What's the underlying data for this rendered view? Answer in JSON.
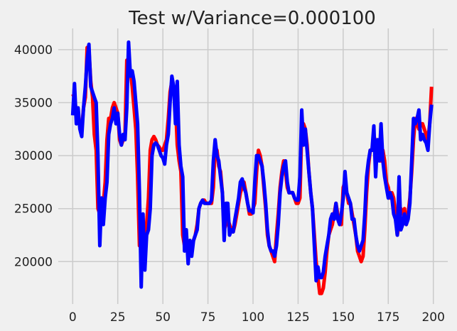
{
  "chart_data": {
    "type": "line",
    "title": "Test w/Variance=0.000100",
    "xlabel": "",
    "ylabel": "",
    "xlim": [
      -8,
      208
    ],
    "ylim": [
      16000,
      42000
    ],
    "x_ticks": [
      0,
      25,
      50,
      75,
      100,
      125,
      150,
      175,
      200
    ],
    "x_tick_labels": [
      "0",
      "25",
      "50",
      "75",
      "100",
      "125",
      "150",
      "175",
      "200"
    ],
    "y_ticks": [
      20000,
      25000,
      30000,
      35000,
      40000
    ],
    "y_tick_labels": [
      "20000",
      "25000",
      "30000",
      "35000",
      "40000"
    ],
    "grid": true,
    "background": "#f0f0f0",
    "grid_color": "#cbcbcb",
    "series": [
      {
        "color": "#ff0000",
        "x": [
          0,
          1,
          2,
          3,
          4,
          5,
          6,
          7,
          8,
          9,
          10,
          11,
          12,
          13,
          14,
          15,
          16,
          17,
          18,
          19,
          20,
          21,
          22,
          23,
          24,
          25,
          26,
          27,
          28,
          29,
          30,
          31,
          32,
          33,
          34,
          35,
          36,
          37,
          38,
          39,
          40,
          41,
          42,
          43,
          44,
          45,
          46,
          47,
          48,
          49,
          50,
          51,
          52,
          53,
          54,
          55,
          56,
          57,
          58,
          59,
          60,
          61,
          62,
          63,
          64,
          65,
          66,
          67,
          68,
          69,
          70,
          71,
          72,
          73,
          74,
          75,
          76,
          77,
          78,
          79,
          80,
          81,
          82,
          83,
          84,
          85,
          86,
          87,
          88,
          89,
          90,
          91,
          92,
          93,
          94,
          95,
          96,
          97,
          98,
          99,
          100,
          101,
          102,
          103,
          104,
          105,
          106,
          107,
          108,
          109,
          110,
          111,
          112,
          113,
          114,
          115,
          116,
          117,
          118,
          119,
          120,
          121,
          122,
          123,
          124,
          125,
          126,
          127,
          128,
          129,
          130,
          131,
          132,
          133,
          134,
          135,
          136,
          137,
          138,
          139,
          140,
          141,
          142,
          143,
          144,
          145,
          146,
          147,
          148,
          149,
          150,
          151,
          152,
          153,
          154,
          155,
          156,
          157,
          158,
          159,
          160,
          161,
          162,
          163,
          164,
          165,
          166,
          167,
          168,
          169,
          170,
          171,
          172,
          173,
          174,
          175,
          176,
          177,
          178,
          179,
          180,
          181,
          182,
          183,
          184,
          185,
          186,
          187,
          188,
          189,
          190,
          191,
          192,
          193,
          194,
          195,
          196,
          197,
          198,
          199
        ],
        "y": [
          35800,
          35500,
          34000,
          33500,
          33000,
          32500,
          34500,
          35500,
          40200,
          40000,
          37000,
          35500,
          32000,
          30500,
          25000,
          24500,
          24800,
          25500,
          27500,
          31500,
          33500,
          33500,
          34500,
          35000,
          34500,
          34000,
          31500,
          31000,
          31500,
          32000,
          39000,
          38500,
          38000,
          36500,
          34500,
          32500,
          28000,
          21500,
          22000,
          22500,
          23000,
          23500,
          26000,
          30500,
          31500,
          31800,
          31500,
          31000,
          30800,
          30500,
          30500,
          31000,
          31500,
          33500,
          36000,
          37000,
          36500,
          35000,
          31000,
          29500,
          28500,
          22500,
          21500,
          21200,
          21000,
          21000,
          21500,
          22000,
          22500,
          23500,
          25000,
          25500,
          25800,
          25800,
          25500,
          25500,
          25500,
          25500,
          27000,
          30800,
          30500,
          29000,
          28500,
          26500,
          23000,
          23500,
          24000,
          23500,
          23000,
          22800,
          23500,
          24500,
          25500,
          26500,
          27000,
          27500,
          26500,
          25500,
          24500,
          24500,
          25000,
          25500,
          28500,
          30500,
          30000,
          29000,
          27000,
          25000,
          22500,
          21500,
          21000,
          20500,
          20000,
          22500,
          24500,
          27000,
          28500,
          29500,
          28500,
          27000,
          26500,
          26500,
          26500,
          26000,
          25500,
          25500,
          26000,
          32500,
          33000,
          32500,
          31000,
          28500,
          26500,
          25000,
          22500,
          20000,
          18500,
          17000,
          17000,
          17500,
          19000,
          21000,
          22500,
          23000,
          23500,
          24500,
          25500,
          24500,
          24000,
          23500,
          27000,
          27500,
          26500,
          25500,
          25500,
          24500,
          23500,
          22500,
          21000,
          20500,
          20000,
          20500,
          23000,
          26500,
          29000,
          30500,
          30500,
          32000,
          31000,
          30500,
          30000,
          29500,
          30500,
          29500,
          27500,
          27000,
          26000,
          26500,
          26000,
          24500,
          22500,
          23500,
          25000,
          24500,
          25000,
          23500,
          24500,
          26000,
          28500,
          31500,
          33500,
          33000,
          32500,
          33000,
          33000,
          32500,
          32000,
          31500,
          33000,
          36500
        ]
      },
      {
        "color": "#0000ff",
        "x": [
          0,
          1,
          2,
          3,
          4,
          5,
          6,
          7,
          8,
          9,
          10,
          11,
          12,
          13,
          14,
          15,
          16,
          17,
          18,
          19,
          20,
          21,
          22,
          23,
          24,
          25,
          26,
          27,
          28,
          29,
          30,
          31,
          32,
          33,
          34,
          35,
          36,
          37,
          38,
          39,
          40,
          41,
          42,
          43,
          44,
          45,
          46,
          47,
          48,
          49,
          50,
          51,
          52,
          53,
          54,
          55,
          56,
          57,
          58,
          59,
          60,
          61,
          62,
          63,
          64,
          65,
          66,
          67,
          68,
          69,
          70,
          71,
          72,
          73,
          74,
          75,
          76,
          77,
          78,
          79,
          80,
          81,
          82,
          83,
          84,
          85,
          86,
          87,
          88,
          89,
          90,
          91,
          92,
          93,
          94,
          95,
          96,
          97,
          98,
          99,
          100,
          101,
          102,
          103,
          104,
          105,
          106,
          107,
          108,
          109,
          110,
          111,
          112,
          113,
          114,
          115,
          116,
          117,
          118,
          119,
          120,
          121,
          122,
          123,
          124,
          125,
          126,
          127,
          128,
          129,
          130,
          131,
          132,
          133,
          134,
          135,
          136,
          137,
          138,
          139,
          140,
          141,
          142,
          143,
          144,
          145,
          146,
          147,
          148,
          149,
          150,
          151,
          152,
          153,
          154,
          155,
          156,
          157,
          158,
          159,
          160,
          161,
          162,
          163,
          164,
          165,
          166,
          167,
          168,
          169,
          170,
          171,
          172,
          173,
          174,
          175,
          176,
          177,
          178,
          179,
          180,
          181,
          182,
          183,
          184,
          185,
          186,
          187,
          188,
          189,
          190,
          191,
          192,
          193,
          194,
          195,
          196,
          197,
          198,
          199
        ],
        "y": [
          33800,
          36800,
          33000,
          34500,
          32500,
          31800,
          34500,
          36500,
          39000,
          40500,
          36500,
          36000,
          35500,
          35000,
          30000,
          21500,
          26000,
          23500,
          26000,
          27500,
          32000,
          33000,
          33500,
          34500,
          33000,
          34000,
          32000,
          31000,
          32000,
          31500,
          34500,
          40700,
          37500,
          38000,
          37000,
          35000,
          33000,
          26500,
          17600,
          24500,
          19200,
          22500,
          23000,
          25000,
          30000,
          31000,
          31200,
          31000,
          30500,
          30000,
          29800,
          29200,
          31000,
          32000,
          35000,
          37500,
          36500,
          33000,
          37000,
          31000,
          29000,
          28000,
          21000,
          23000,
          19800,
          22000,
          20500,
          22000,
          22500,
          23000,
          25000,
          25500,
          25800,
          25500,
          25500,
          25500,
          25500,
          25800,
          29500,
          31500,
          30000,
          29500,
          28000,
          26500,
          22000,
          25500,
          25500,
          22500,
          23000,
          22800,
          24000,
          25000,
          26000,
          27500,
          27800,
          27000,
          26500,
          25500,
          24800,
          24800,
          24600,
          27500,
          30000,
          30000,
          29500,
          29000,
          27500,
          25500,
          23000,
          21500,
          21000,
          21000,
          20500,
          21500,
          23500,
          26500,
          28000,
          29000,
          29500,
          27500,
          26500,
          26500,
          26500,
          26000,
          25800,
          25800,
          28000,
          34300,
          31000,
          32500,
          30500,
          28500,
          26500,
          25000,
          21500,
          18200,
          19500,
          18500,
          18500,
          19000,
          20500,
          21500,
          22500,
          24000,
          24500,
          24000,
          25500,
          24000,
          23500,
          24500,
          26000,
          28500,
          26500,
          26000,
          25500,
          24000,
          24000,
          22500,
          21500,
          21000,
          21500,
          22000,
          24500,
          28000,
          29500,
          30500,
          30500,
          32800,
          28000,
          31500,
          29500,
          33000,
          29500,
          28000,
          27000,
          26000,
          26500,
          26000,
          24500,
          24000,
          22500,
          28000,
          23000,
          23500,
          24500,
          23500,
          24000,
          25500,
          29500,
          33500,
          33000,
          33500,
          34300,
          31500,
          32000,
          31500,
          31200,
          30500,
          33000,
          34800
        ]
      }
    ]
  }
}
